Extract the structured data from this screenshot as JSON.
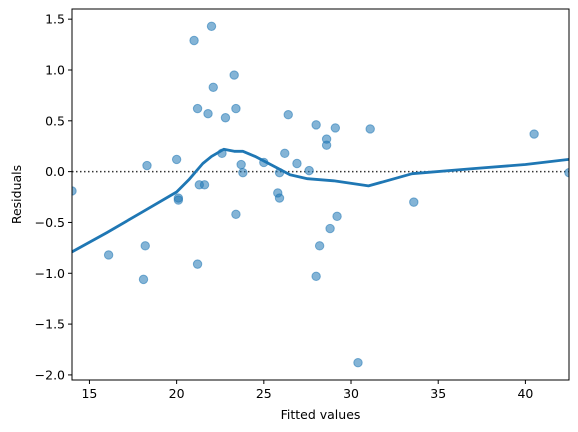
{
  "chart_data": {
    "type": "scatter",
    "title": "",
    "xlabel": "Fitted values",
    "ylabel": "Residuals",
    "xlim": [
      14.0,
      42.5
    ],
    "ylim": [
      -2.05,
      1.6
    ],
    "xticks": [
      15,
      20,
      25,
      30,
      35,
      40
    ],
    "yticks": [
      -2.0,
      -1.5,
      -1.0,
      -0.5,
      0.0,
      0.5,
      1.0,
      1.5
    ],
    "xtick_labels": [
      "15",
      "20",
      "25",
      "30",
      "35",
      "40"
    ],
    "ytick_labels": [
      "−2.0",
      "−1.5",
      "−1.0",
      "−0.5",
      "0.0",
      "0.5",
      "1.0",
      "1.5"
    ],
    "grid": false,
    "reference_line": {
      "y": 0.0,
      "style": "dotted",
      "color": "#333333"
    },
    "points": {
      "color": "#1f77b4",
      "opacity": 0.55,
      "data": [
        [
          14.0,
          -0.19
        ],
        [
          16.1,
          -0.82
        ],
        [
          18.1,
          -1.06
        ],
        [
          18.2,
          -0.73
        ],
        [
          18.3,
          0.06
        ],
        [
          20.0,
          0.12
        ],
        [
          20.1,
          -0.26
        ],
        [
          20.1,
          -0.28
        ],
        [
          21.0,
          1.29
        ],
        [
          21.2,
          0.62
        ],
        [
          21.2,
          -0.91
        ],
        [
          21.3,
          -0.13
        ],
        [
          21.6,
          -0.13
        ],
        [
          21.8,
          0.57
        ],
        [
          22.0,
          1.43
        ],
        [
          22.1,
          0.83
        ],
        [
          22.6,
          0.18
        ],
        [
          22.8,
          0.53
        ],
        [
          23.3,
          0.95
        ],
        [
          23.4,
          0.62
        ],
        [
          23.4,
          -0.42
        ],
        [
          23.7,
          0.07
        ],
        [
          23.8,
          -0.01
        ],
        [
          25.0,
          0.09
        ],
        [
          25.8,
          -0.21
        ],
        [
          25.9,
          -0.26
        ],
        [
          25.9,
          -0.01
        ],
        [
          26.2,
          0.18
        ],
        [
          26.4,
          0.56
        ],
        [
          26.9,
          0.08
        ],
        [
          27.6,
          0.01
        ],
        [
          28.0,
          0.46
        ],
        [
          28.0,
          -1.03
        ],
        [
          28.2,
          -0.73
        ],
        [
          28.6,
          0.26
        ],
        [
          28.6,
          0.32
        ],
        [
          28.8,
          -0.56
        ],
        [
          29.1,
          0.43
        ],
        [
          29.2,
          -0.44
        ],
        [
          30.4,
          -1.88
        ],
        [
          31.1,
          0.42
        ],
        [
          33.6,
          -0.3
        ],
        [
          40.5,
          0.37
        ],
        [
          42.5,
          -0.01
        ]
      ]
    },
    "smooth_line": {
      "color": "#1f77b4",
      "data": [
        [
          14.0,
          -0.79
        ],
        [
          16.0,
          -0.6
        ],
        [
          18.0,
          -0.4
        ],
        [
          20.0,
          -0.2
        ],
        [
          20.7,
          -0.08
        ],
        [
          21.5,
          0.08
        ],
        [
          22.0,
          0.15
        ],
        [
          22.7,
          0.22
        ],
        [
          23.3,
          0.2
        ],
        [
          23.8,
          0.2
        ],
        [
          24.5,
          0.15
        ],
        [
          25.5,
          0.06
        ],
        [
          26.5,
          -0.03
        ],
        [
          27.5,
          -0.07
        ],
        [
          29.0,
          -0.09
        ],
        [
          31.0,
          -0.14
        ],
        [
          33.5,
          -0.02
        ],
        [
          37.0,
          0.03
        ],
        [
          40.0,
          0.07
        ],
        [
          42.5,
          0.12
        ]
      ]
    }
  }
}
